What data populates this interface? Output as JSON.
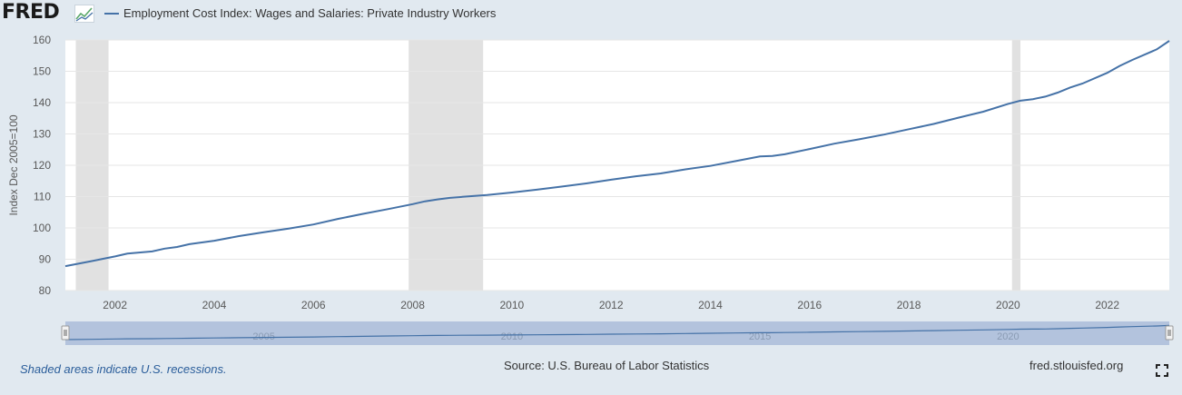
{
  "header": {
    "logo": "FRED",
    "legend": "Employment Cost Index: Wages and Salaries: Private Industry Workers"
  },
  "footer": {
    "recession_note": "Shaded areas indicate U.S. recessions.",
    "source": "Source: U.S. Bureau of Labor Statistics",
    "site": "fred.stlouisfed.org"
  },
  "icons": [
    "fred-graph-icon",
    "fullscreen-icon"
  ],
  "colors": {
    "series": "#4572a7",
    "background": "#e1e9f0",
    "plot": "#ffffff",
    "recession": "#e1e1e1",
    "navigator": "#a2b6d4"
  },
  "chart_data": {
    "type": "line",
    "title": "",
    "ylabel": "Index Dec 2005=100",
    "xlabel": "",
    "xlim": [
      2001.0,
      2023.25
    ],
    "ylim": [
      80,
      160
    ],
    "yticks": [
      80,
      90,
      100,
      110,
      120,
      130,
      140,
      150,
      160
    ],
    "xticks": [
      "2002",
      "2004",
      "2006",
      "2008",
      "2010",
      "2012",
      "2014",
      "2016",
      "2018",
      "2020",
      "2022"
    ],
    "navigator_labels": [
      "2005",
      "2010",
      "2015",
      "2020"
    ],
    "grid": true,
    "legend": "top-left",
    "recessions": [
      [
        2001.21,
        2001.87
      ],
      [
        2007.92,
        2009.42
      ],
      [
        2020.08,
        2020.25
      ]
    ],
    "series": [
      {
        "name": "Employment Cost Index: Wages and Salaries: Private Industry Workers",
        "x": [
          2001.0,
          2001.5,
          2002.0,
          2002.25,
          2002.75,
          2003.0,
          2003.25,
          2003.5,
          2004.0,
          2004.5,
          2005.0,
          2005.5,
          2006.0,
          2006.5,
          2007.0,
          2007.5,
          2008.0,
          2008.25,
          2008.5,
          2008.75,
          2009.0,
          2009.5,
          2010.0,
          2010.5,
          2011.0,
          2011.5,
          2012.0,
          2012.5,
          2013.0,
          2013.5,
          2014.0,
          2014.5,
          2015.0,
          2015.25,
          2015.5,
          2016.0,
          2016.5,
          2017.0,
          2017.5,
          2018.0,
          2018.5,
          2019.0,
          2019.5,
          2020.0,
          2020.25,
          2020.5,
          2020.75,
          2021.0,
          2021.25,
          2021.5,
          2022.0,
          2022.25,
          2022.5,
          2023.0,
          2023.25
        ],
        "values": [
          87.8,
          89.3,
          90.9,
          91.8,
          92.5,
          93.4,
          93.9,
          94.8,
          95.9,
          97.4,
          98.6,
          99.8,
          101.1,
          102.9,
          104.5,
          106.0,
          107.6,
          108.5,
          109.1,
          109.6,
          109.9,
          110.5,
          111.3,
          112.2,
          113.2,
          114.2,
          115.4,
          116.5,
          117.4,
          118.7,
          119.8,
          121.3,
          122.8,
          123.0,
          123.5,
          125.2,
          126.9,
          128.3,
          129.8,
          131.5,
          133.2,
          135.2,
          137.1,
          139.6,
          140.6,
          141.1,
          141.9,
          143.2,
          144.8,
          146.1,
          149.5,
          151.7,
          153.6,
          157.0,
          159.7
        ]
      }
    ]
  }
}
